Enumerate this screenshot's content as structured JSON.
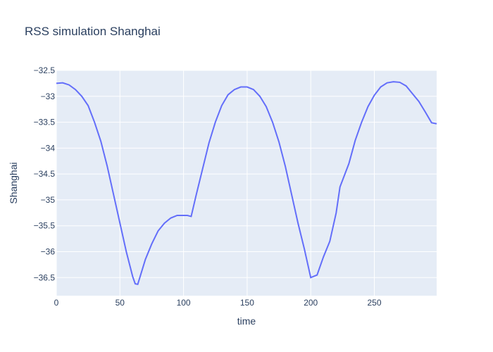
{
  "chart_data": {
    "type": "line",
    "title": "RSS simulation Shanghai",
    "xlabel": "time",
    "ylabel": "Shanghai",
    "xlim": [
      0,
      299
    ],
    "ylim": [
      -36.85,
      -32.5
    ],
    "x_ticks": [
      0,
      50,
      100,
      150,
      200,
      250
    ],
    "y_ticks": [
      -32.5,
      -33,
      -33.5,
      -34,
      -34.5,
      -35,
      -35.5,
      -36,
      -36.5
    ],
    "x_tick_labels": [
      "0",
      "50",
      "100",
      "150",
      "200",
      "250"
    ],
    "y_tick_labels": [
      "−32.5",
      "−33",
      "−33.5",
      "−34",
      "−34.5",
      "−35",
      "−35.5",
      "−36",
      "−36.5"
    ],
    "grid": true,
    "colors": {
      "line": "#636efa",
      "plot_bg": "#e5ecf6",
      "grid": "#ffffff",
      "text": "#2a3f5f"
    },
    "series": [
      {
        "x": [
          0,
          5,
          10,
          15,
          20,
          25,
          30,
          35,
          40,
          45,
          50,
          55,
          60,
          62,
          64,
          70,
          75,
          80,
          85,
          90,
          95,
          100,
          103,
          106,
          110,
          115,
          120,
          125,
          130,
          135,
          140,
          145,
          150,
          155,
          160,
          165,
          170,
          175,
          180,
          185,
          190,
          195,
          200,
          205,
          210,
          215,
          220,
          223,
          230,
          235,
          240,
          245,
          250,
          255,
          260,
          265,
          270,
          275,
          280,
          285,
          290,
          295,
          299
        ],
        "y": [
          -32.75,
          -32.74,
          -32.78,
          -32.87,
          -33.0,
          -33.18,
          -33.5,
          -33.87,
          -34.35,
          -34.9,
          -35.45,
          -36.0,
          -36.48,
          -36.62,
          -36.63,
          -36.15,
          -35.85,
          -35.6,
          -35.45,
          -35.35,
          -35.3,
          -35.3,
          -35.3,
          -35.32,
          -34.9,
          -34.4,
          -33.9,
          -33.5,
          -33.18,
          -32.97,
          -32.87,
          -32.82,
          -32.82,
          -32.87,
          -33.0,
          -33.2,
          -33.5,
          -33.88,
          -34.35,
          -34.9,
          -35.45,
          -35.95,
          -36.5,
          -36.45,
          -36.1,
          -35.8,
          -35.25,
          -34.75,
          -34.3,
          -33.85,
          -33.5,
          -33.2,
          -32.98,
          -32.82,
          -32.74,
          -32.72,
          -32.73,
          -32.8,
          -32.95,
          -33.1,
          -33.3,
          -33.51,
          -33.53
        ]
      }
    ]
  }
}
